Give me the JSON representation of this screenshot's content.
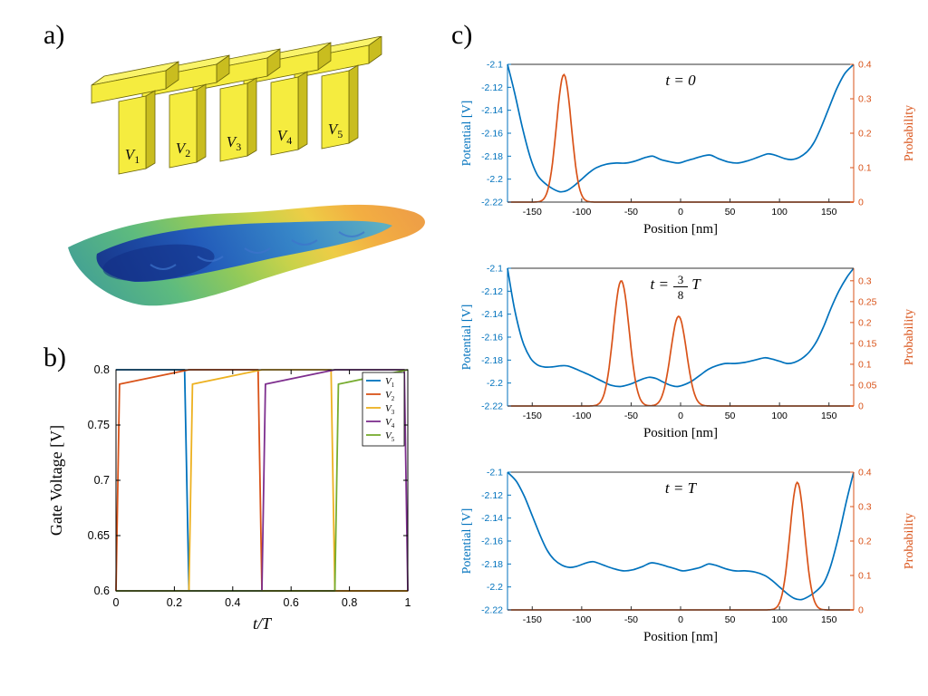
{
  "panels": {
    "a": {
      "label": "a)",
      "gate_labels": [
        "V1",
        "V2",
        "V3",
        "V4",
        "V5"
      ],
      "gate_color": "#F5EC3F",
      "gate_side_color": "#C9BD1F",
      "gate_top_color": "#FAF46A"
    },
    "b": {
      "label": "b)"
    },
    "c": {
      "label": "c)"
    }
  },
  "chart_data": [
    {
      "id": "gate_voltages",
      "type": "line",
      "title": "",
      "xlabel": "t/T",
      "ylabel": "Gate Voltage [V]",
      "xlim": [
        0,
        1
      ],
      "ylim": [
        0.6,
        0.8
      ],
      "x_ticks": [
        0,
        0.2,
        0.4,
        0.6,
        0.8,
        1
      ],
      "y_ticks": [
        0.6,
        0.65,
        0.7,
        0.75,
        0.8
      ],
      "legend_position": "top-right",
      "series": [
        {
          "name": "V1",
          "color": "#0072BD",
          "points": [
            [
              0,
              0.8
            ],
            [
              0.235,
              0.8
            ],
            [
              0.25,
              0.6
            ],
            [
              1,
              0.6
            ]
          ]
        },
        {
          "name": "V2",
          "color": "#D95319",
          "points": [
            [
              0,
              0.6
            ],
            [
              0.012,
              0.787
            ],
            [
              0.25,
              0.8
            ],
            [
              0.487,
              0.8
            ],
            [
              0.5,
              0.6
            ],
            [
              1,
              0.6
            ]
          ]
        },
        {
          "name": "V3",
          "color": "#EDB120",
          "points": [
            [
              0,
              0.6
            ],
            [
              0.25,
              0.6
            ],
            [
              0.262,
              0.787
            ],
            [
              0.5,
              0.8
            ],
            [
              0.737,
              0.8
            ],
            [
              0.75,
              0.6
            ],
            [
              1,
              0.6
            ]
          ]
        },
        {
          "name": "V4",
          "color": "#7E2F8E",
          "points": [
            [
              0,
              0.6
            ],
            [
              0.5,
              0.6
            ],
            [
              0.512,
              0.787
            ],
            [
              0.75,
              0.8
            ],
            [
              0.988,
              0.8
            ],
            [
              1,
              0.6
            ]
          ]
        },
        {
          "name": "V5",
          "color": "#77AC30",
          "points": [
            [
              0,
              0.6
            ],
            [
              0.75,
              0.6
            ],
            [
              0.762,
              0.787
            ],
            [
              1,
              0.8
            ]
          ]
        }
      ]
    },
    {
      "id": "t0",
      "type": "line",
      "title": "t = 0",
      "xlabel": "Position [nm]",
      "ylabel_left": "Potential [V]",
      "ylabel_right": "Probability",
      "xlim": [
        -175,
        175
      ],
      "ylim_left": [
        -2.22,
        -2.1
      ],
      "ylim_right": [
        0,
        0.4
      ],
      "x_ticks": [
        -150,
        -100,
        -50,
        0,
        50,
        100,
        150
      ],
      "y_ticks_left": [
        -2.1,
        -2.12,
        -2.14,
        -2.16,
        -2.18,
        -2.2,
        -2.22
      ],
      "y_ticks_right": [
        0,
        0.1,
        0.2,
        0.3,
        0.4
      ],
      "potential_color": "#0072BD",
      "probability_color": "#D95319",
      "potential_points": [
        [
          -175,
          -2.1
        ],
        [
          -168,
          -2.124
        ],
        [
          -160,
          -2.155
        ],
        [
          -152,
          -2.181
        ],
        [
          -145,
          -2.196
        ],
        [
          -138,
          -2.203
        ],
        [
          -130,
          -2.208
        ],
        [
          -122,
          -2.211
        ],
        [
          -115,
          -2.21
        ],
        [
          -108,
          -2.206
        ],
        [
          -100,
          -2.2
        ],
        [
          -92,
          -2.194
        ],
        [
          -85,
          -2.19
        ],
        [
          -75,
          -2.187
        ],
        [
          -65,
          -2.186
        ],
        [
          -55,
          -2.186
        ],
        [
          -45,
          -2.184
        ],
        [
          -35,
          -2.181
        ],
        [
          -28,
          -2.18
        ],
        [
          -20,
          -2.183
        ],
        [
          -10,
          -2.185
        ],
        [
          -2,
          -2.186
        ],
        [
          6,
          -2.184
        ],
        [
          14,
          -2.182
        ],
        [
          22,
          -2.18
        ],
        [
          30,
          -2.179
        ],
        [
          38,
          -2.182
        ],
        [
          48,
          -2.185
        ],
        [
          58,
          -2.186
        ],
        [
          68,
          -2.184
        ],
        [
          78,
          -2.181
        ],
        [
          88,
          -2.178
        ],
        [
          95,
          -2.179
        ],
        [
          105,
          -2.182
        ],
        [
          112,
          -2.183
        ],
        [
          120,
          -2.181
        ],
        [
          128,
          -2.176
        ],
        [
          135,
          -2.168
        ],
        [
          142,
          -2.155
        ],
        [
          150,
          -2.138
        ],
        [
          158,
          -2.121
        ],
        [
          166,
          -2.108
        ],
        [
          175,
          -2.1
        ]
      ],
      "probability_peaks": [
        {
          "center": -118,
          "sigma": 7.5,
          "height": 0.37
        }
      ]
    },
    {
      "id": "t38",
      "type": "line",
      "title": "t = 3/8 T",
      "title_frac": {
        "pre": "t = ",
        "num": "3",
        "den": "8",
        "post": "T"
      },
      "xlabel": "Position [nm]",
      "ylabel_left": "Potential [V]",
      "ylabel_right": "Probability",
      "xlim": [
        -175,
        175
      ],
      "ylim_left": [
        -2.22,
        -2.1
      ],
      "ylim_right": [
        0,
        0.33
      ],
      "x_ticks": [
        -150,
        -100,
        -50,
        0,
        50,
        100,
        150
      ],
      "y_ticks_left": [
        -2.1,
        -2.12,
        -2.14,
        -2.16,
        -2.18,
        -2.2,
        -2.22
      ],
      "y_ticks_right": [
        0,
        0.05,
        0.1,
        0.15,
        0.2,
        0.25,
        0.3
      ],
      "potential_color": "#0072BD",
      "probability_color": "#D95319",
      "potential_points": [
        [
          -175,
          -2.1
        ],
        [
          -168,
          -2.135
        ],
        [
          -160,
          -2.163
        ],
        [
          -152,
          -2.178
        ],
        [
          -145,
          -2.184
        ],
        [
          -138,
          -2.186
        ],
        [
          -130,
          -2.186
        ],
        [
          -122,
          -2.185
        ],
        [
          -115,
          -2.185
        ],
        [
          -108,
          -2.187
        ],
        [
          -100,
          -2.19
        ],
        [
          -92,
          -2.193
        ],
        [
          -85,
          -2.196
        ],
        [
          -78,
          -2.199
        ],
        [
          -70,
          -2.202
        ],
        [
          -62,
          -2.203
        ],
        [
          -55,
          -2.202
        ],
        [
          -48,
          -2.2
        ],
        [
          -40,
          -2.197
        ],
        [
          -32,
          -2.195
        ],
        [
          -25,
          -2.196
        ],
        [
          -18,
          -2.199
        ],
        [
          -10,
          -2.202
        ],
        [
          -3,
          -2.203
        ],
        [
          5,
          -2.201
        ],
        [
          12,
          -2.198
        ],
        [
          20,
          -2.193
        ],
        [
          28,
          -2.188
        ],
        [
          36,
          -2.185
        ],
        [
          45,
          -2.183
        ],
        [
          55,
          -2.183
        ],
        [
          65,
          -2.182
        ],
        [
          75,
          -2.18
        ],
        [
          85,
          -2.178
        ],
        [
          92,
          -2.179
        ],
        [
          100,
          -2.181
        ],
        [
          108,
          -2.183
        ],
        [
          115,
          -2.182
        ],
        [
          122,
          -2.179
        ],
        [
          130,
          -2.173
        ],
        [
          138,
          -2.163
        ],
        [
          145,
          -2.15
        ],
        [
          152,
          -2.135
        ],
        [
          160,
          -2.12
        ],
        [
          168,
          -2.108
        ],
        [
          175,
          -2.1
        ]
      ],
      "probability_peaks": [
        {
          "center": -60,
          "sigma": 8,
          "height": 0.3
        },
        {
          "center": -2,
          "sigma": 8,
          "height": 0.215
        }
      ]
    },
    {
      "id": "tT",
      "type": "line",
      "title": "t = T",
      "xlabel": "Position [nm]",
      "ylabel_left": "Potential [V]",
      "ylabel_right": "Probability",
      "xlim": [
        -175,
        175
      ],
      "ylim_left": [
        -2.22,
        -2.1
      ],
      "ylim_right": [
        0,
        0.4
      ],
      "x_ticks": [
        -150,
        -100,
        -50,
        0,
        50,
        100,
        150
      ],
      "y_ticks_left": [
        -2.1,
        -2.12,
        -2.14,
        -2.16,
        -2.18,
        -2.2,
        -2.22
      ],
      "y_ticks_right": [
        0,
        0.1,
        0.2,
        0.3,
        0.4
      ],
      "potential_color": "#0072BD",
      "probability_color": "#D95319",
      "potential_points": [
        [
          -175,
          -2.1
        ],
        [
          -166,
          -2.108
        ],
        [
          -158,
          -2.121
        ],
        [
          -150,
          -2.138
        ],
        [
          -142,
          -2.155
        ],
        [
          -135,
          -2.168
        ],
        [
          -128,
          -2.176
        ],
        [
          -120,
          -2.181
        ],
        [
          -112,
          -2.183
        ],
        [
          -105,
          -2.182
        ],
        [
          -95,
          -2.179
        ],
        [
          -88,
          -2.178
        ],
        [
          -78,
          -2.181
        ],
        [
          -68,
          -2.184
        ],
        [
          -58,
          -2.186
        ],
        [
          -48,
          -2.185
        ],
        [
          -38,
          -2.182
        ],
        [
          -30,
          -2.179
        ],
        [
          -22,
          -2.18
        ],
        [
          -14,
          -2.182
        ],
        [
          -6,
          -2.184
        ],
        [
          2,
          -2.186
        ],
        [
          10,
          -2.185
        ],
        [
          20,
          -2.183
        ],
        [
          28,
          -2.18
        ],
        [
          35,
          -2.181
        ],
        [
          45,
          -2.184
        ],
        [
          55,
          -2.186
        ],
        [
          65,
          -2.186
        ],
        [
          75,
          -2.187
        ],
        [
          85,
          -2.19
        ],
        [
          92,
          -2.194
        ],
        [
          100,
          -2.2
        ],
        [
          108,
          -2.206
        ],
        [
          115,
          -2.21
        ],
        [
          122,
          -2.211
        ],
        [
          130,
          -2.208
        ],
        [
          138,
          -2.203
        ],
        [
          145,
          -2.196
        ],
        [
          152,
          -2.181
        ],
        [
          160,
          -2.155
        ],
        [
          168,
          -2.124
        ],
        [
          175,
          -2.1
        ]
      ],
      "probability_peaks": [
        {
          "center": 118,
          "sigma": 7.5,
          "height": 0.37
        }
      ]
    }
  ]
}
